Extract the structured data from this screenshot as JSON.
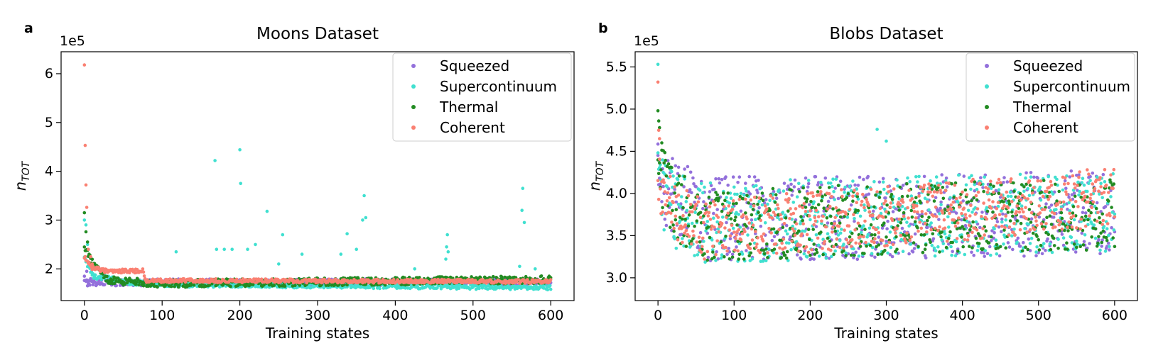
{
  "chart_data": [
    {
      "panel_label": "a",
      "type": "scatter",
      "title": "Moons Dataset",
      "xlabel": "Training states",
      "ylabel_main": "n",
      "ylabel_sub": "TOT",
      "y_multiplier": "1e5",
      "xlim": [
        -30,
        630
      ],
      "ylim": [
        1.35,
        6.45
      ],
      "xticks": [
        0,
        100,
        200,
        300,
        400,
        500,
        600
      ],
      "xtick_labels": [
        "0",
        "100",
        "200",
        "300",
        "400",
        "500",
        "600"
      ],
      "yticks": [
        2,
        3,
        4,
        5,
        6
      ],
      "ytick_labels": [
        "2",
        "3",
        "4",
        "5",
        "6"
      ],
      "legend_position": "top-right",
      "series": [
        {
          "name": "Squeezed",
          "color": "#9370db",
          "base": [
            [
              0,
              1.72
            ],
            [
              10,
              1.72
            ],
            [
              60,
              1.72
            ],
            [
              600,
              1.73
            ]
          ],
          "noise": 0.07,
          "spikes": [
            [
              0,
              1.85
            ],
            [
              3,
              1.95
            ],
            [
              5,
              1.76
            ],
            [
              8,
              1.8
            ],
            [
              25,
              1.9
            ],
            [
              40,
              1.76
            ],
            [
              120,
              1.72
            ]
          ]
        },
        {
          "name": "Supercontinuum",
          "color": "#40e0d0",
          "base": [
            [
              0,
              2.2
            ],
            [
              12,
              1.85
            ],
            [
              60,
              1.72
            ],
            [
              100,
              1.68
            ],
            [
              600,
              1.62
            ]
          ],
          "noise": 0.05,
          "spikes": [
            [
              0,
              3.0
            ],
            [
              2,
              2.9
            ],
            [
              4,
              2.5
            ],
            [
              118,
              2.35
            ],
            [
              168,
              4.22
            ],
            [
              170,
              2.4
            ],
            [
              180,
              2.4
            ],
            [
              190,
              2.4
            ],
            [
              200,
              4.44
            ],
            [
              201,
              3.75
            ],
            [
              210,
              2.4
            ],
            [
              220,
              2.5
            ],
            [
              235,
              3.18
            ],
            [
              250,
              2.1
            ],
            [
              255,
              2.7
            ],
            [
              280,
              2.3
            ],
            [
              330,
              2.3
            ],
            [
              338,
              2.72
            ],
            [
              350,
              2.4
            ],
            [
              358,
              3.0
            ],
            [
              360,
              3.5
            ],
            [
              362,
              3.05
            ],
            [
              425,
              2.0
            ],
            [
              465,
              2.2
            ],
            [
              466,
              2.45
            ],
            [
              467,
              2.7
            ],
            [
              468,
              2.35
            ],
            [
              560,
              2.05
            ],
            [
              563,
              3.2
            ],
            [
              564,
              3.65
            ],
            [
              566,
              2.95
            ],
            [
              580,
              2.0
            ]
          ]
        },
        {
          "name": "Thermal",
          "color": "#228b22",
          "base": [
            [
              0,
              2.4
            ],
            [
              10,
              2.15
            ],
            [
              30,
              1.78
            ],
            [
              60,
              1.73
            ],
            [
              100,
              1.7
            ],
            [
              600,
              1.78
            ]
          ],
          "noise": 0.08,
          "spikes": [
            [
              0,
              3.15
            ],
            [
              2,
              2.76
            ],
            [
              4,
              2.55
            ],
            [
              6,
              2.3
            ]
          ]
        },
        {
          "name": "Coherent",
          "color": "#fa8072",
          "base": [
            [
              0,
              2.25
            ],
            [
              10,
              2.02
            ],
            [
              30,
              1.95
            ],
            [
              75,
              1.96
            ],
            [
              80,
              1.76
            ],
            [
              600,
              1.74
            ]
          ],
          "noise": 0.04,
          "spikes": [
            [
              0,
              6.18
            ],
            [
              1,
              4.53
            ],
            [
              2,
              3.72
            ],
            [
              3,
              3.26
            ],
            [
              5,
              2.4
            ],
            [
              8,
              2.25
            ],
            [
              10,
              2.1
            ]
          ]
        }
      ]
    },
    {
      "panel_label": "b",
      "type": "scatter",
      "title": "Blobs Dataset",
      "xlabel": "Training states",
      "ylabel_main": "n",
      "ylabel_sub": "TOT",
      "y_multiplier": "1e5",
      "xlim": [
        -30,
        630
      ],
      "ylim": [
        2.73,
        5.68
      ],
      "xticks": [
        0,
        100,
        200,
        300,
        400,
        500,
        600
      ],
      "xtick_labels": [
        "0",
        "100",
        "200",
        "300",
        "400",
        "500",
        "600"
      ],
      "yticks": [
        3.0,
        3.5,
        4.0,
        4.5,
        5.0,
        5.5
      ],
      "ytick_labels": [
        "3.0",
        "3.5",
        "4.0",
        "4.5",
        "5.0",
        "5.5"
      ],
      "legend_position": "top-right",
      "series": [
        {
          "name": "Squeezed",
          "color": "#9370db",
          "base": [
            [
              0,
              4.2
            ],
            [
              20,
              3.95
            ],
            [
              60,
              3.7
            ],
            [
              300,
              3.72
            ],
            [
              600,
              3.78
            ]
          ],
          "noise": 0.5,
          "spikes": [
            [
              0,
              4.45
            ],
            [
              2,
              4.4
            ]
          ]
        },
        {
          "name": "Supercontinuum",
          "color": "#40e0d0",
          "base": [
            [
              0,
              4.1
            ],
            [
              20,
              3.8
            ],
            [
              60,
              3.65
            ],
            [
              300,
              3.72
            ],
            [
              600,
              3.78
            ]
          ],
          "noise": 0.48,
          "spikes": [
            [
              0,
              5.53
            ],
            [
              1,
              4.4
            ],
            [
              288,
              4.76
            ],
            [
              300,
              4.62
            ]
          ]
        },
        {
          "name": "Thermal",
          "color": "#228b22",
          "base": [
            [
              0,
              4.3
            ],
            [
              20,
              3.9
            ],
            [
              60,
              3.6
            ],
            [
              300,
              3.7
            ],
            [
              600,
              3.75
            ]
          ],
          "noise": 0.42,
          "spikes": [
            [
              0,
              4.98
            ],
            [
              1,
              4.86
            ],
            [
              2,
              4.78
            ],
            [
              5,
              4.6
            ]
          ]
        },
        {
          "name": "Coherent",
          "color": "#fa8072",
          "base": [
            [
              0,
              4.1
            ],
            [
              20,
              3.8
            ],
            [
              60,
              3.58
            ],
            [
              300,
              3.72
            ],
            [
              600,
              3.95
            ]
          ],
          "noise": 0.36,
          "spikes": [
            [
              0,
              5.32
            ],
            [
              1,
              4.75
            ],
            [
              2,
              4.65
            ]
          ]
        }
      ]
    }
  ]
}
